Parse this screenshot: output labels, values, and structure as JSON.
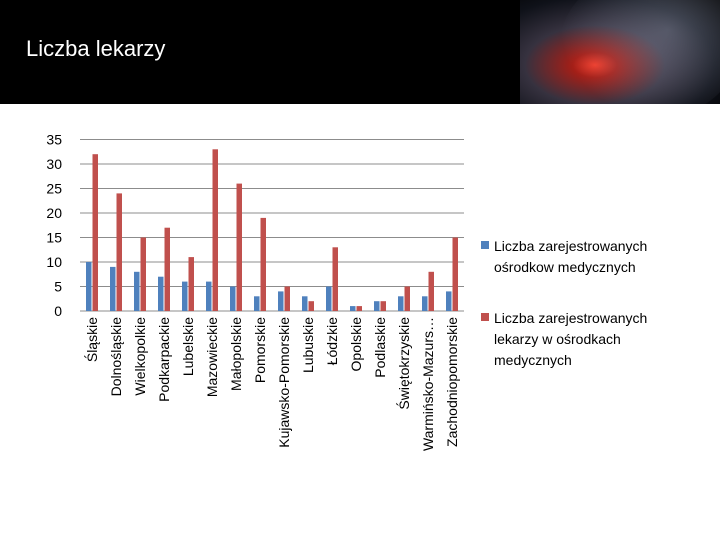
{
  "header": {
    "title": "Liczba lekarzy"
  },
  "chart_data": {
    "type": "bar",
    "title": "Liczba lekarzy",
    "xlabel": "",
    "ylabel": "",
    "ylim": [
      0,
      35
    ],
    "yticks": [
      0,
      5,
      10,
      15,
      20,
      25,
      30,
      35
    ],
    "grid": true,
    "legend_position": "right",
    "categories": [
      "Śląskie",
      "Dolnośląskie",
      "Wielkopolkie",
      "Podkarpackie",
      "Lubelskie",
      "Mazowieckie",
      "Małopolskie",
      "Pomorskie",
      "Kujawsko-Pomorskie",
      "Lubuskie",
      "Łódzkie",
      "Opolskie",
      "Podlaskie",
      "Świętokrzyskie",
      "Warmińsko-Mazurs…",
      "Zachodniopomorskie"
    ],
    "series": [
      {
        "name": "Liczba zarejestrowanych ośrodkow medycznych",
        "color": "#4f81bd",
        "values": [
          10,
          9,
          8,
          7,
          6,
          6,
          5,
          3,
          4,
          3,
          5,
          1,
          2,
          3,
          3,
          4
        ]
      },
      {
        "name": "Liczba zarejestrowanych lekarzy w ośrodkach medycznych",
        "color": "#c0504d",
        "values": [
          32,
          24,
          15,
          17,
          11,
          33,
          26,
          19,
          5,
          2,
          13,
          1,
          2,
          5,
          8,
          15
        ]
      }
    ]
  }
}
